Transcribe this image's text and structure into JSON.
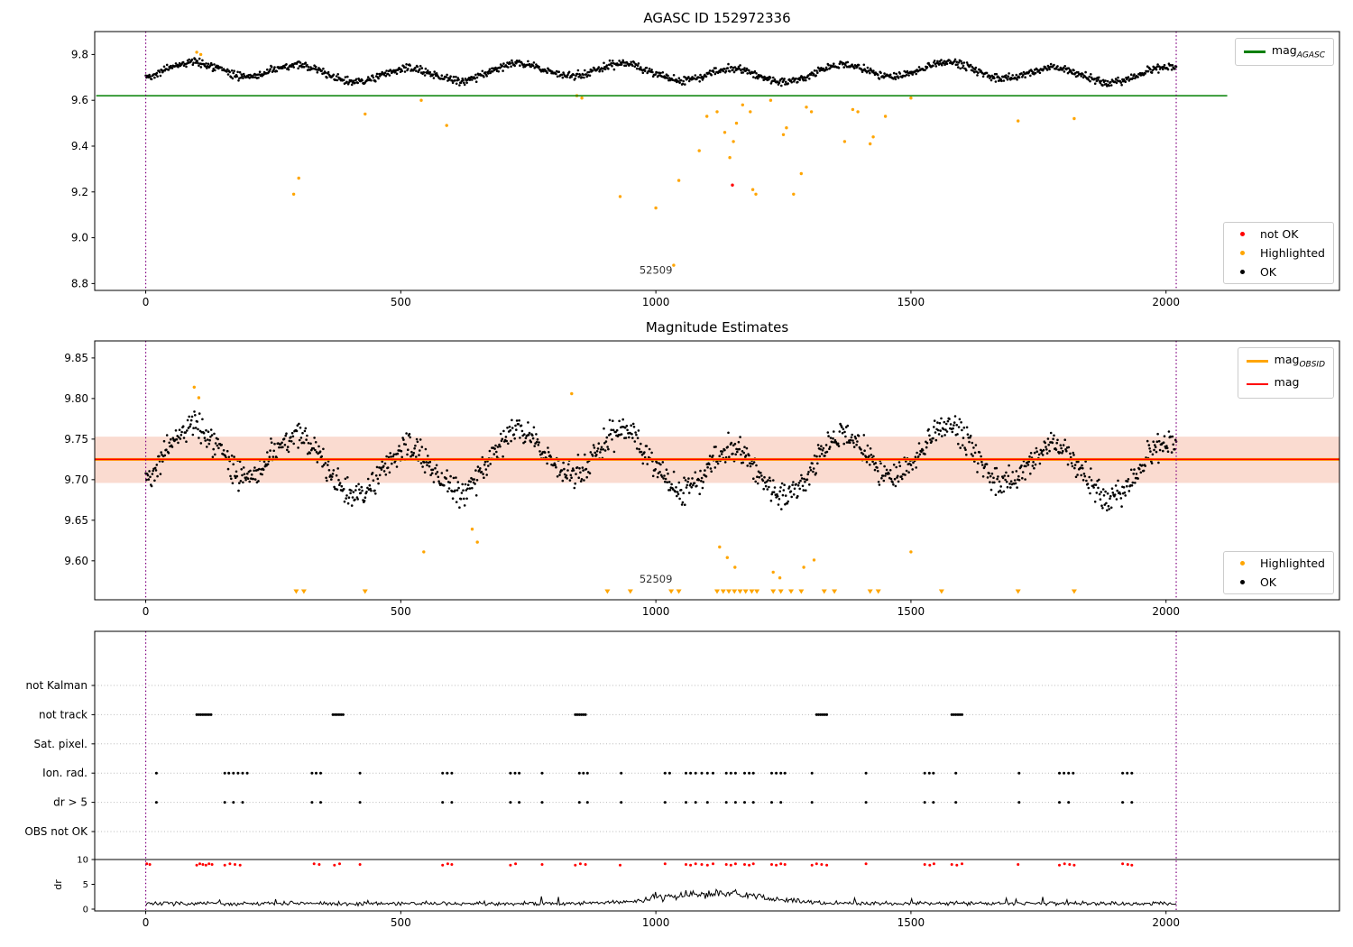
{
  "colors": {
    "ok": "#000000",
    "highlighted": "#ffa500",
    "not_ok": "#ff0000",
    "grid": "#bbbbbb",
    "vline": "#800080"
  },
  "chart_data": [
    {
      "type": "scatter",
      "title": "AGASC ID 152972336",
      "xlim": [
        -100,
        2340
      ],
      "ylim": [
        8.77,
        9.9
      ],
      "xticks": [
        0,
        500,
        1000,
        1500,
        2000
      ],
      "yticks": [
        {
          "v": 8.8,
          "label": "8.8"
        },
        {
          "v": 9.0,
          "label": "9.0"
        },
        {
          "v": 9.2,
          "label": "9.2"
        },
        {
          "v": 9.4,
          "label": "9.4"
        },
        {
          "v": 9.6,
          "label": "9.6"
        },
        {
          "v": 9.8,
          "label": "9.8"
        }
      ],
      "hline": {
        "y": 9.62,
        "x_range": [
          -97,
          2120
        ],
        "color": "#007f00",
        "label_main": "mag",
        "label_sub": "AGASC"
      },
      "vlines": {
        "x": [
          0,
          2020
        ],
        "color": "#800080",
        "style": "dotted"
      },
      "annotation": {
        "text": "52509",
        "x": 1000,
        "y": 8.843
      },
      "point_legend": [
        {
          "label": "not OK",
          "color": "#ff0000"
        },
        {
          "label": "Highlighted",
          "color": "#ffa500"
        },
        {
          "label": "OK",
          "color": "#000000"
        }
      ],
      "ok_series_spec": {
        "n": 1400,
        "x_start": 0,
        "x_end": 2020,
        "mean": 9.722,
        "amp1": 0.03,
        "period1": 212,
        "phase1": -1.1,
        "amp2": 0.015,
        "period2": 700,
        "phase2": 0.4,
        "noise": 0.012,
        "seed": 42
      },
      "highlighted_points": [
        [
          100,
          9.81
        ],
        [
          108,
          9.8
        ],
        [
          290,
          9.19
        ],
        [
          300,
          9.26
        ],
        [
          430,
          9.54
        ],
        [
          540,
          9.6
        ],
        [
          590,
          9.49
        ],
        [
          845,
          9.62
        ],
        [
          855,
          9.61
        ],
        [
          930,
          9.18
        ],
        [
          1000,
          9.13
        ],
        [
          1035,
          8.88
        ],
        [
          1045,
          9.25
        ],
        [
          1085,
          9.38
        ],
        [
          1100,
          9.53
        ],
        [
          1120,
          9.55
        ],
        [
          1135,
          9.46
        ],
        [
          1145,
          9.35
        ],
        [
          1152,
          9.42
        ],
        [
          1158,
          9.5
        ],
        [
          1170,
          9.58
        ],
        [
          1185,
          9.55
        ],
        [
          1190,
          9.21
        ],
        [
          1196,
          9.19
        ],
        [
          1225,
          9.6
        ],
        [
          1250,
          9.45
        ],
        [
          1256,
          9.48
        ],
        [
          1270,
          9.19
        ],
        [
          1285,
          9.28
        ],
        [
          1295,
          9.57
        ],
        [
          1305,
          9.55
        ],
        [
          1370,
          9.42
        ],
        [
          1386,
          9.56
        ],
        [
          1396,
          9.55
        ],
        [
          1420,
          9.41
        ],
        [
          1426,
          9.44
        ],
        [
          1450,
          9.53
        ],
        [
          1500,
          9.61
        ],
        [
          1710,
          9.51
        ],
        [
          1820,
          9.52
        ]
      ],
      "not_ok_points": [
        [
          1150,
          9.23
        ]
      ]
    },
    {
      "type": "scatter",
      "title": "Magnitude Estimates",
      "xlim": [
        -100,
        2340
      ],
      "ylim": [
        9.552,
        9.871
      ],
      "xticks": [
        0,
        500,
        1000,
        1500,
        2000
      ],
      "yticks": [
        {
          "v": 9.6,
          "label": "9.60"
        },
        {
          "v": 9.65,
          "label": "9.65"
        },
        {
          "v": 9.7,
          "label": "9.70"
        },
        {
          "v": 9.75,
          "label": "9.75"
        },
        {
          "v": 9.8,
          "label": "9.80"
        },
        {
          "v": 9.85,
          "label": "9.85"
        }
      ],
      "band": {
        "y0": 9.696,
        "y1": 9.753,
        "color": "#fadbd0"
      },
      "obsid_line": {
        "y": 9.725,
        "color": "#ffa500",
        "label_main": "mag",
        "label_sub": "OBSID"
      },
      "mag_line": {
        "y": 9.725,
        "color": "#ff0000",
        "label_main": "mag",
        "label_sub": ""
      },
      "vlines": {
        "x": [
          0,
          2020
        ],
        "color": "#800080",
        "style": "dotted"
      },
      "annotation": {
        "text": "52509",
        "x": 1000,
        "y": 9.573
      },
      "point_legend": [
        {
          "label": "Highlighted",
          "color": "#ffa500"
        },
        {
          "label": "OK",
          "color": "#000000"
        }
      ],
      "highlighted_points": [
        [
          95,
          9.814
        ],
        [
          104,
          9.801
        ],
        [
          835,
          9.806
        ],
        [
          545,
          9.611
        ],
        [
          640,
          9.639
        ],
        [
          650,
          9.623
        ],
        [
          1125,
          9.617
        ],
        [
          1140,
          9.604
        ],
        [
          1155,
          9.592
        ],
        [
          1230,
          9.586
        ],
        [
          1243,
          9.579
        ],
        [
          1290,
          9.592
        ],
        [
          1310,
          9.601
        ],
        [
          1500,
          9.611
        ]
      ],
      "flag_triangles": {
        "y": 9.562,
        "color": "#ffa500",
        "x": [
          295,
          310,
          430,
          905,
          950,
          1030,
          1045,
          1120,
          1132,
          1143,
          1154,
          1165,
          1176,
          1188,
          1198,
          1230,
          1245,
          1265,
          1285,
          1330,
          1350,
          1420,
          1436,
          1560,
          1710,
          1820
        ]
      }
    },
    {
      "type": "flags-and-dr",
      "xticks": [
        0,
        500,
        1000,
        1500,
        2000
      ],
      "vlines": {
        "x": [
          0,
          2020
        ],
        "color": "#800080",
        "style": "dotted"
      },
      "categories": [
        "not Kalman",
        "not track",
        "Sat. pixel.",
        "Ion. rad.",
        "dr > 5",
        "OBS not OK"
      ],
      "flags": {
        "not Kalman": [],
        "not track": [
          100,
          104,
          108,
          112,
          116,
          120,
          124,
          128,
          367,
          371,
          375,
          379,
          383,
          387,
          842,
          846,
          850,
          854,
          858,
          862,
          1315,
          1319,
          1323,
          1327,
          1331,
          1335,
          1580,
          1584,
          1588,
          1592,
          1596,
          1600
        ],
        "Sat. pixel.": [],
        "Ion. rad.": [
          21,
          155,
          163,
          172,
          181,
          190,
          199,
          326,
          334,
          343,
          420,
          582,
          591,
          600,
          715,
          724,
          732,
          777,
          850,
          858,
          866,
          932,
          1018,
          1027,
          1059,
          1068,
          1078,
          1090,
          1101,
          1112,
          1138,
          1147,
          1156,
          1174,
          1183,
          1191,
          1227,
          1236,
          1245,
          1253,
          1306,
          1412,
          1527,
          1536,
          1544,
          1588,
          1712,
          1791,
          1800,
          1809,
          1818,
          1915,
          1924,
          1933
        ],
        "dr > 5": [
          21,
          155,
          172,
          190,
          326,
          343,
          420,
          582,
          600,
          715,
          732,
          777,
          850,
          866,
          932,
          1018,
          1059,
          1078,
          1101,
          1138,
          1156,
          1174,
          1191,
          1227,
          1245,
          1306,
          1412,
          1527,
          1544,
          1588,
          1712,
          1791,
          1809,
          1915,
          1933
        ],
        "OBS not OK": []
      },
      "dr_axis": {
        "ylabel": "dr",
        "yticks": [
          {
            "v": 10,
            "label": "10"
          },
          {
            "v": 5,
            "label": "5"
          },
          {
            "v": 0,
            "label": "0"
          }
        ],
        "top_line_y": 10,
        "red_points": {
          "y": 9.15,
          "color": "#ff0000",
          "x": [
            2,
            8,
            100,
            106,
            112,
            118,
            124,
            130,
            155,
            165,
            175,
            185,
            330,
            340,
            370,
            380,
            420,
            582,
            592,
            600,
            715,
            725,
            777,
            842,
            852,
            862,
            930,
            1018,
            1059,
            1068,
            1078,
            1090,
            1101,
            1112,
            1138,
            1147,
            1156,
            1174,
            1183,
            1191,
            1227,
            1236,
            1245,
            1253,
            1306,
            1315,
            1325,
            1335,
            1412,
            1527,
            1537,
            1545,
            1580,
            1590,
            1600,
            1710,
            1791,
            1801,
            1811,
            1820,
            1915,
            1925,
            1933
          ]
        },
        "line_spec": {
          "n": 850,
          "x_start": 0,
          "x_end": 2020,
          "base": 1.15,
          "noise": 0.5,
          "bump_center": 1110,
          "bump_amp": 2.1,
          "bump_sigma": 95,
          "spike_prob": 0.02,
          "spike_amp": 1.6,
          "min": 0.15,
          "seed": 7,
          "color": "#000000"
        }
      }
    }
  ]
}
